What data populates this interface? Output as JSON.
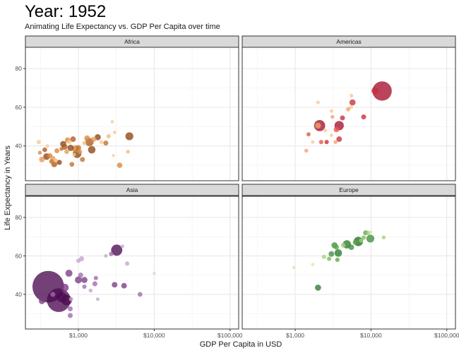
{
  "chart_data": {
    "type": "scatter",
    "title": "Year: 1952",
    "subtitle": "Animating Life Expectancy vs. GDP Per Capita over time",
    "xlabel": "GDP Per Capita in USD",
    "ylabel": "Life Expectancy in Years",
    "x_scale": "log10",
    "xlim": [
      200,
      130000
    ],
    "ylim": [
      22,
      91
    ],
    "x_ticks": [
      1000,
      10000,
      100000
    ],
    "x_tick_labels": [
      "$1,000",
      "$10,000",
      "$100,000"
    ],
    "y_ticks": [
      40,
      60,
      80
    ],
    "y_tick_labels": [
      "40",
      "60",
      "80"
    ],
    "grid": true,
    "legend": "none",
    "facets": [
      {
        "name": "Africa",
        "points": [
          {
            "gdp": 300,
            "life": 42,
            "pop": 1.5,
            "color": "#f7c98f"
          },
          {
            "gdp": 310,
            "life": 36.5,
            "pop": 1.2,
            "color": "#d9873a"
          },
          {
            "gdp": 330,
            "life": 33,
            "pop": 2.5,
            "color": "#e59a52"
          },
          {
            "gdp": 360,
            "life": 38,
            "pop": 1.8,
            "color": "#b0591c"
          },
          {
            "gdp": 380,
            "life": 34.5,
            "pop": 3.5,
            "color": "#8c4513"
          },
          {
            "gdp": 390,
            "life": 40,
            "pop": 1.0,
            "color": "#f7c98f"
          },
          {
            "gdp": 420,
            "life": 35,
            "pop": 2.0,
            "color": "#d9873a"
          },
          {
            "gdp": 440,
            "life": 32,
            "pop": 1.6,
            "color": "#c0702a"
          },
          {
            "gdp": 460,
            "life": 33.5,
            "pop": 2.2,
            "color": "#e59a52"
          },
          {
            "gdp": 480,
            "life": 30.5,
            "pop": 2.8,
            "color": "#b0591c"
          },
          {
            "gdp": 500,
            "life": 32.5,
            "pop": 1.4,
            "color": "#f2b77a"
          },
          {
            "gdp": 520,
            "life": 37.5,
            "pop": 1.9,
            "color": "#d9873a"
          },
          {
            "gdp": 560,
            "life": 31.5,
            "pop": 2.1,
            "color": "#8c4513"
          },
          {
            "gdp": 600,
            "life": 38.5,
            "pop": 1.3,
            "color": "#c0702a"
          },
          {
            "gdp": 630,
            "life": 41,
            "pop": 3.0,
            "color": "#8c4513"
          },
          {
            "gdp": 660,
            "life": 39.5,
            "pop": 2.6,
            "color": "#b0591c"
          },
          {
            "gdp": 700,
            "life": 37,
            "pop": 1.7,
            "color": "#e59a52"
          },
          {
            "gdp": 720,
            "life": 43,
            "pop": 2.3,
            "color": "#d9873a"
          },
          {
            "gdp": 760,
            "life": 42,
            "pop": 1.5,
            "color": "#f7c98f"
          },
          {
            "gdp": 790,
            "life": 39,
            "pop": 3.2,
            "color": "#8c4513"
          },
          {
            "gdp": 820,
            "life": 30.5,
            "pop": 1.8,
            "color": "#c0702a"
          },
          {
            "gdp": 850,
            "life": 43.5,
            "pop": 2.5,
            "color": "#b0591c"
          },
          {
            "gdp": 880,
            "life": 35.5,
            "pop": 1.0,
            "color": "#f7c98f"
          },
          {
            "gdp": 920,
            "life": 38.5,
            "pop": 4.0,
            "color": "#d9873a"
          },
          {
            "gdp": 960,
            "life": 36,
            "pop": 6.0,
            "color": "#8c4513"
          },
          {
            "gdp": 1000,
            "life": 39,
            "pop": 2.4,
            "color": "#c0702a"
          },
          {
            "gdp": 1050,
            "life": 37,
            "pop": 1.6,
            "color": "#e59a52"
          },
          {
            "gdp": 1130,
            "life": 33,
            "pop": 2.0,
            "color": "#c0702a"
          },
          {
            "gdp": 1200,
            "life": 41.5,
            "pop": 1.3,
            "color": "#f2b77a"
          },
          {
            "gdp": 1300,
            "life": 44,
            "pop": 2.5,
            "color": "#d9873a"
          },
          {
            "gdp": 1400,
            "life": 42,
            "pop": 5.5,
            "color": "#b0591c"
          },
          {
            "gdp": 1500,
            "life": 38,
            "pop": 4.5,
            "color": "#8c4513"
          },
          {
            "gdp": 1600,
            "life": 43.5,
            "pop": 2.0,
            "color": "#e59a52"
          },
          {
            "gdp": 1800,
            "life": 44.5,
            "pop": 3.0,
            "color": "#8c4513"
          },
          {
            "gdp": 2000,
            "life": 42,
            "pop": 1.2,
            "color": "#f7c98f"
          },
          {
            "gdp": 2300,
            "life": 41.5,
            "pop": 2.0,
            "color": "#c0702a"
          },
          {
            "gdp": 2500,
            "life": 45,
            "pop": 1.5,
            "color": "#f2b77a"
          },
          {
            "gdp": 2800,
            "life": 52.5,
            "pop": 0.9,
            "color": "#f7c98f"
          },
          {
            "gdp": 3000,
            "life": 47,
            "pop": 1.0,
            "color": "#f7c98f"
          },
          {
            "gdp": 2900,
            "life": 35,
            "pop": 0.7,
            "color": "#f7c98f"
          },
          {
            "gdp": 3500,
            "life": 30,
            "pop": 2.3,
            "color": "#d9873a"
          },
          {
            "gdp": 4700,
            "life": 45,
            "pop": 5.0,
            "color": "#8c4513"
          },
          {
            "gdp": 4500,
            "life": 37,
            "pop": 1.1,
            "color": "#f2b77a"
          }
        ]
      },
      {
        "name": "Americas",
        "points": [
          {
            "gdp": 1400,
            "life": 37.5,
            "pop": 1.2,
            "color": "#f4a06a"
          },
          {
            "gdp": 1500,
            "life": 46,
            "pop": 1.4,
            "color": "#e05a44"
          },
          {
            "gdp": 1700,
            "life": 42,
            "pop": 1.0,
            "color": "#f7c88f"
          },
          {
            "gdp": 2000,
            "life": 50.5,
            "pop": 2.8,
            "color": "#f4a06a"
          },
          {
            "gdp": 2100,
            "life": 50.5,
            "pop": 10.0,
            "color": "#a50f2d"
          },
          {
            "gdp": 2200,
            "life": 42,
            "pop": 1.5,
            "color": "#e05a44"
          },
          {
            "gdp": 2500,
            "life": 48,
            "pop": 1.0,
            "color": "#f7c88f"
          },
          {
            "gdp": 2600,
            "life": 42,
            "pop": 1.5,
            "color": "#c92d3b"
          },
          {
            "gdp": 3000,
            "life": 58,
            "pop": 1.0,
            "color": "#f7c88f"
          },
          {
            "gdp": 3100,
            "life": 55,
            "pop": 1.2,
            "color": "#f4a06a"
          },
          {
            "gdp": 3000,
            "life": 45.5,
            "pop": 0.9,
            "color": "#f7c88f"
          },
          {
            "gdp": 2000,
            "life": 62.5,
            "pop": 1.0,
            "color": "#f7c88f"
          },
          {
            "gdp": 3800,
            "life": 50.5,
            "pop": 7.0,
            "color": "#a50f2d"
          },
          {
            "gdp": 3500,
            "life": 48.5,
            "pop": 2.5,
            "color": "#e05a44"
          },
          {
            "gdp": 3400,
            "life": 42,
            "pop": 1.2,
            "color": "#f4a06a"
          },
          {
            "gdp": 3800,
            "life": 43.5,
            "pop": 2.5,
            "color": "#c92d3b"
          },
          {
            "gdp": 4200,
            "life": 54.5,
            "pop": 2.0,
            "color": "#c92d3b"
          },
          {
            "gdp": 5000,
            "life": 59,
            "pop": 1.5,
            "color": "#f4a06a"
          },
          {
            "gdp": 5500,
            "life": 60,
            "pop": 1.0,
            "color": "#f7c88f"
          },
          {
            "gdp": 5700,
            "life": 62.5,
            "pop": 3.0,
            "color": "#c92d3b"
          },
          {
            "gdp": 5500,
            "life": 66,
            "pop": 1.2,
            "color": "#f7c88f"
          },
          {
            "gdp": 8000,
            "life": 55,
            "pop": 2.0,
            "color": "#c92d3b"
          },
          {
            "gdp": 11300,
            "life": 68.5,
            "pop": 4.0,
            "color": "#c92d3b"
          },
          {
            "gdp": 14000,
            "life": 68.4,
            "pop": 30.0,
            "color": "#a50f2d"
          }
        ]
      },
      {
        "name": "Asia",
        "points": [
          {
            "gdp": 330,
            "life": 36.5,
            "pop": 3.0,
            "color": "#7a3b82"
          },
          {
            "gdp": 400,
            "life": 44,
            "pop": 80.0,
            "color": "#4b0c52"
          },
          {
            "gdp": 550,
            "life": 37,
            "pop": 45.0,
            "color": "#4b0c52"
          },
          {
            "gdp": 460,
            "life": 40,
            "pop": 2.0,
            "color": "#9e6aa8"
          },
          {
            "gdp": 600,
            "life": 38.5,
            "pop": 8.0,
            "color": "#4b0c52"
          },
          {
            "gdp": 660,
            "life": 43.5,
            "pop": 5.0,
            "color": "#7a3b82"
          },
          {
            "gdp": 700,
            "life": 37,
            "pop": 9.0,
            "color": "#4b0c52"
          },
          {
            "gdp": 750,
            "life": 51,
            "pop": 4.0,
            "color": "#7a3b82"
          },
          {
            "gdp": 780,
            "life": 32.5,
            "pop": 2.0,
            "color": "#9e6aa8"
          },
          {
            "gdp": 780,
            "life": 29,
            "pop": 2.0,
            "color": "#9e6aa8"
          },
          {
            "gdp": 800,
            "life": 37.5,
            "pop": 1.5,
            "color": "#c5a2cc"
          },
          {
            "gdp": 1000,
            "life": 47.5,
            "pop": 4.0,
            "color": "#7a3b82"
          },
          {
            "gdp": 1000,
            "life": 57.5,
            "pop": 1.5,
            "color": "#c5a2cc"
          },
          {
            "gdp": 1070,
            "life": 50,
            "pop": 2.0,
            "color": "#9e6aa8"
          },
          {
            "gdp": 1100,
            "life": 58.5,
            "pop": 2.0,
            "color": "#c5a2cc"
          },
          {
            "gdp": 1200,
            "life": 47.5,
            "pop": 3.0,
            "color": "#7a3b82"
          },
          {
            "gdp": 1200,
            "life": 44,
            "pop": 1.5,
            "color": "#9e6aa8"
          },
          {
            "gdp": 1450,
            "life": 42,
            "pop": 1.2,
            "color": "#c5a2cc"
          },
          {
            "gdp": 1650,
            "life": 45.5,
            "pop": 2.0,
            "color": "#9e6aa8"
          },
          {
            "gdp": 1700,
            "life": 48.5,
            "pop": 1.5,
            "color": "#9e6aa8"
          },
          {
            "gdp": 1800,
            "life": 37.5,
            "pop": 1.0,
            "color": "#c5a2cc"
          },
          {
            "gdp": 2300,
            "life": 60,
            "pop": 1.0,
            "color": "#c5a2cc"
          },
          {
            "gdp": 2700,
            "life": 61,
            "pop": 1.5,
            "color": "#9e6aa8"
          },
          {
            "gdp": 3000,
            "life": 45,
            "pop": 2.5,
            "color": "#7a3b82"
          },
          {
            "gdp": 3200,
            "life": 63,
            "pop": 10.0,
            "color": "#4b0c52"
          },
          {
            "gdp": 3800,
            "life": 65,
            "pop": 1.0,
            "color": "#c5a2cc"
          },
          {
            "gdp": 4000,
            "life": 44.5,
            "pop": 2.5,
            "color": "#7a3b82"
          },
          {
            "gdp": 4400,
            "life": 56,
            "pop": 1.5,
            "color": "#c5a2cc"
          },
          {
            "gdp": 6500,
            "life": 40,
            "pop": 1.8,
            "color": "#9e6aa8"
          },
          {
            "gdp": 10000,
            "life": 51,
            "pop": 0.8,
            "color": "#e0cde4"
          }
        ]
      },
      {
        "name": "Europe",
        "points": [
          {
            "gdp": 960,
            "life": 54,
            "pop": 0.9,
            "color": "#d3ebb4"
          },
          {
            "gdp": 1700,
            "life": 55.5,
            "pop": 0.9,
            "color": "#d3ebb4"
          },
          {
            "gdp": 2000,
            "life": 43.5,
            "pop": 3.0,
            "color": "#2b7a31"
          },
          {
            "gdp": 2400,
            "life": 59.5,
            "pop": 1.5,
            "color": "#a5d277"
          },
          {
            "gdp": 2800,
            "life": 58.5,
            "pop": 1.5,
            "color": "#7cb85a"
          },
          {
            "gdp": 3000,
            "life": 61,
            "pop": 2.5,
            "color": "#3f8f3a"
          },
          {
            "gdp": 3300,
            "life": 65.5,
            "pop": 3.0,
            "color": "#3f8f3a"
          },
          {
            "gdp": 3500,
            "life": 64.5,
            "pop": 2.0,
            "color": "#5aa544"
          },
          {
            "gdp": 3600,
            "life": 58,
            "pop": 1.5,
            "color": "#5aa544"
          },
          {
            "gdp": 3700,
            "life": 61.5,
            "pop": 4.5,
            "color": "#2b7a31"
          },
          {
            "gdp": 4300,
            "life": 65.5,
            "pop": 1.8,
            "color": "#a5d277"
          },
          {
            "gdp": 4800,
            "life": 66,
            "pop": 5.5,
            "color": "#2b7a31"
          },
          {
            "gdp": 5500,
            "life": 64.5,
            "pop": 2.5,
            "color": "#3f8f3a"
          },
          {
            "gdp": 6200,
            "life": 67,
            "pop": 2.0,
            "color": "#5aa544"
          },
          {
            "gdp": 6800,
            "life": 67.5,
            "pop": 7.0,
            "color": "#1f6b27"
          },
          {
            "gdp": 7400,
            "life": 68,
            "pop": 1.5,
            "color": "#a5d277"
          },
          {
            "gdp": 8000,
            "life": 69.5,
            "pop": 1.5,
            "color": "#7cb85a"
          },
          {
            "gdp": 8500,
            "life": 72,
            "pop": 2.0,
            "color": "#5aa544"
          },
          {
            "gdp": 9200,
            "life": 72,
            "pop": 1.5,
            "color": "#a5d277"
          },
          {
            "gdp": 9800,
            "life": 69,
            "pop": 5.0,
            "color": "#3f8f3a"
          },
          {
            "gdp": 10000,
            "life": 72.5,
            "pop": 0.8,
            "color": "#d3ebb4"
          },
          {
            "gdp": 14700,
            "life": 69.6,
            "pop": 1.2,
            "color": "#a5d277"
          }
        ]
      }
    ]
  }
}
